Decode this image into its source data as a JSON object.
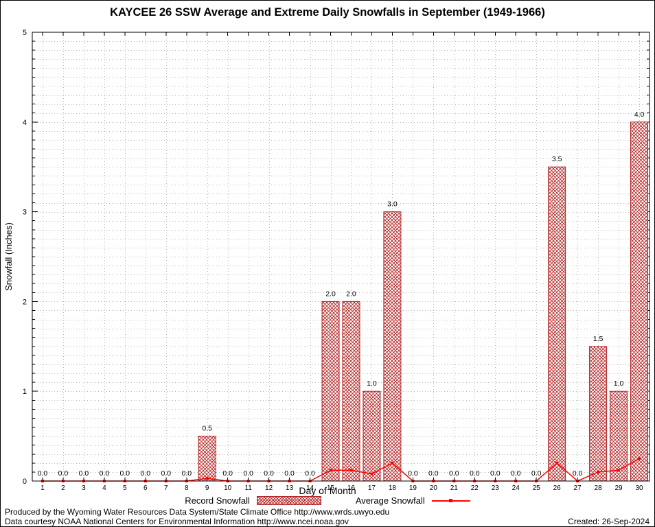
{
  "title": "KAYCEE 26 SSW Average and Extreme Daily Snowfalls in September (1949-1966)",
  "chart_data": {
    "type": "bar",
    "title": "KAYCEE 26 SSW Average and Extreme Daily Snowfalls in September (1949-1966)",
    "xlabel": "Day of Month",
    "ylabel": "Snowfall (Inches)",
    "ylim": [
      0,
      5
    ],
    "yticks": [
      0,
      1,
      2,
      3,
      4,
      5
    ],
    "grid": "dotted",
    "legend_position": "bottom",
    "categories": [
      1,
      2,
      3,
      4,
      5,
      6,
      7,
      8,
      9,
      10,
      11,
      12,
      13,
      14,
      15,
      16,
      17,
      18,
      19,
      20,
      21,
      22,
      23,
      24,
      25,
      26,
      27,
      28,
      29,
      30
    ],
    "series": [
      {
        "name": "Record Snowfall",
        "type": "bar",
        "color": "#b22222",
        "values": [
          0.0,
          0.0,
          0.0,
          0.0,
          0.0,
          0.0,
          0.0,
          0.0,
          0.5,
          0.0,
          0.0,
          0.0,
          0.0,
          0.0,
          2.0,
          2.0,
          1.0,
          3.0,
          0.0,
          0.0,
          0.0,
          0.0,
          0.0,
          0.0,
          0.0,
          3.5,
          0.0,
          1.5,
          1.0,
          4.0
        ]
      },
      {
        "name": "Average Snowfall",
        "type": "line",
        "color": "#ff0000",
        "values": [
          0,
          0,
          0,
          0,
          0,
          0,
          0,
          0,
          0.03,
          0,
          0,
          0,
          0,
          0,
          0.12,
          0.12,
          0.08,
          0.2,
          0,
          0,
          0,
          0,
          0,
          0,
          0,
          0.2,
          0,
          0.1,
          0.12,
          0.25
        ]
      }
    ]
  },
  "footer": {
    "line1": "Produced by the Wyoming Water Resources Data System/State Climate Office http://www.wrds.uwyo.edu",
    "line2": "Data courtesy NOAA National Centers for Environmental Information http://www.ncei.noaa.gov",
    "created": "Created: 26-Sep-2024"
  }
}
